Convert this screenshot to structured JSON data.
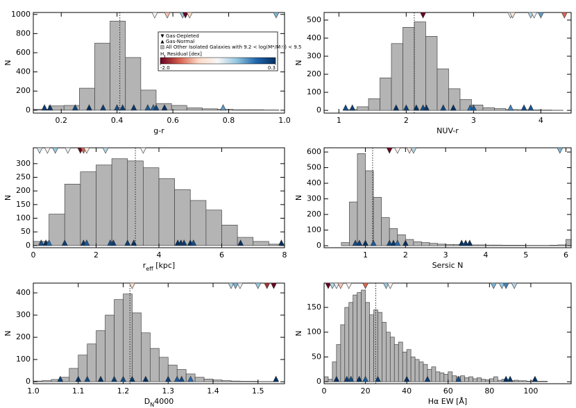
{
  "legend": {
    "loc": "upper right",
    "panel": 0,
    "entries": [
      "Gas-Depleted",
      "Gas-Normal",
      "All Other Isolated Galaxies with 9.2 < log(M*/M☉) < 9.5"
    ],
    "colorbar_label": [
      "H",
      "I",
      " Residual [dex]"
    ],
    "colorbar_lim": [
      -2.0,
      0.3
    ],
    "colorbar_ticks": [
      {
        "value": -2.0,
        "label": "-2.0"
      },
      0.3
    ],
    "cmap": [
      "#67001f",
      "#d6604d",
      "#fddbc7",
      "#f7f7f7",
      "#92c5de",
      "#2166ac",
      "#053061"
    ]
  },
  "chart_data": [
    {
      "type": "histogram",
      "xlabel": [
        "g-r"
      ],
      "ylabel": "N",
      "color": "#b4b4b4",
      "xlim": [
        0.1,
        1.0
      ],
      "ylim": [
        -30,
        1020
      ],
      "xticks": [
        0.2,
        0.4,
        0.6,
        0.8,
        {
          "value": 1.0,
          "label": "1.0"
        }
      ],
      "yticks": [
        0,
        200,
        400,
        600,
        800,
        1000
      ],
      "bins": [
        0.1,
        0.155,
        0.21,
        0.265,
        0.32,
        0.375,
        0.43,
        0.485,
        0.54,
        0.595,
        0.65,
        0.705,
        0.76,
        0.815,
        0.87,
        0.925,
        0.98
      ],
      "counts": [
        10,
        45,
        50,
        230,
        700,
        930,
        550,
        210,
        70,
        50,
        25,
        15,
        10,
        5,
        5,
        3
      ],
      "median": 0.41,
      "gas_depleted": {
        "x": [
          0.535,
          0.58,
          0.635,
          0.645,
          0.66,
          0.97
        ],
        "residual": [
          -0.9,
          -1.3,
          -0.5,
          -2.0,
          -1.2,
          -0.4
        ]
      },
      "gas_normal": {
        "x": [
          0.14,
          0.16,
          0.25,
          0.3,
          0.35,
          0.4,
          0.42,
          0.46,
          0.51,
          0.53,
          0.54,
          0.57,
          0.78
        ],
        "residual": [
          0.2,
          0.25,
          0.15,
          0.3,
          0.2,
          0.1,
          0.2,
          0.25,
          0.0,
          -0.1,
          0.15,
          0.3,
          -0.3
        ]
      }
    },
    {
      "type": "histogram",
      "xlabel": [
        "NUV-r"
      ],
      "ylabel": "N",
      "color": "#b4b4b4",
      "xlim": [
        0.78,
        4.45
      ],
      "ylim": [
        -15,
        542
      ],
      "xticks": [
        1,
        2,
        3,
        4
      ],
      "yticks": [
        0,
        100,
        200,
        300,
        400,
        500
      ],
      "bins": [
        1.1,
        1.27,
        1.44,
        1.61,
        1.78,
        1.95,
        2.12,
        2.29,
        2.46,
        2.63,
        2.8,
        2.97,
        3.14,
        3.31,
        3.48,
        3.65,
        3.82,
        3.99,
        4.16,
        4.33
      ],
      "counts": [
        5,
        20,
        65,
        180,
        370,
        460,
        490,
        410,
        230,
        120,
        60,
        30,
        15,
        10,
        5,
        4,
        3,
        2,
        1
      ],
      "median": 2.12,
      "gas_depleted": {
        "x": [
          2.25,
          3.55,
          3.58,
          3.85,
          3.9,
          4.0,
          4.35
        ],
        "residual": [
          -2.0,
          -0.9,
          -1.1,
          -0.6,
          -0.8,
          -0.3,
          -1.6
        ]
      },
      "gas_normal": {
        "x": [
          1.1,
          1.2,
          1.85,
          2.0,
          2.15,
          2.25,
          2.3,
          2.55,
          2.7,
          2.95,
          3.0,
          3.55,
          3.75,
          3.85
        ],
        "residual": [
          0.1,
          0.2,
          0.3,
          0.2,
          0.3,
          0.1,
          0.25,
          0.15,
          0.3,
          -0.1,
          0.0,
          -0.2,
          0.1,
          0.05
        ]
      }
    },
    {
      "type": "histogram",
      "xlabel": [
        "r",
        "eff",
        " [kpc]"
      ],
      "ylabel": "N",
      "color": "#b4b4b4",
      "xlim": [
        0,
        8
      ],
      "ylim": [
        -8,
        358
      ],
      "xticks": [
        0,
        2,
        4,
        6,
        8
      ],
      "yticks": [
        0,
        50,
        100,
        150,
        200,
        250,
        300
      ],
      "bins": [
        0,
        0.5,
        1,
        1.5,
        2,
        2.5,
        3,
        3.5,
        4,
        4.5,
        5,
        5.5,
        6,
        6.5,
        7,
        7.5,
        8
      ],
      "counts": [
        15,
        115,
        225,
        270,
        295,
        318,
        310,
        285,
        245,
        205,
        165,
        130,
        75,
        30,
        15,
        5
      ],
      "median": 3.25,
      "gas_depleted": {
        "x": [
          0.2,
          0.45,
          0.7,
          1.1,
          1.5,
          1.6,
          1.7,
          2.3,
          3.5
        ],
        "residual": [
          -0.7,
          -0.9,
          -0.5,
          -0.8,
          -2.0,
          -1.6,
          -1.0,
          -0.6,
          -0.9
        ]
      },
      "gas_normal": {
        "x": [
          0.25,
          0.4,
          0.5,
          1.0,
          1.6,
          1.7,
          2.45,
          2.55,
          3.0,
          3.2,
          4.6,
          4.7,
          4.8,
          5.0,
          5.1,
          6.6,
          7.9
        ],
        "residual": [
          0.1,
          0.3,
          -0.1,
          0.2,
          0.25,
          0.0,
          0.1,
          0.2,
          0.2,
          0.3,
          0.3,
          0.25,
          0.2,
          0.3,
          0.1,
          0.3,
          0.3
        ]
      }
    },
    {
      "type": "histogram",
      "xlabel": [
        "Sersic N"
      ],
      "ylabel": "N",
      "color": "#b4b4b4",
      "xlim": [
        -0.03,
        6.13
      ],
      "ylim": [
        -13,
        627
      ],
      "xticks": [
        1,
        2,
        3,
        4,
        5,
        6
      ],
      "yticks": [
        0,
        100,
        200,
        300,
        400,
        500,
        600
      ],
      "bins": [
        0.4,
        0.6,
        0.8,
        1.0,
        1.2,
        1.4,
        1.6,
        1.8,
        2.0,
        2.2,
        2.4,
        2.6,
        2.8,
        3.0,
        3.2,
        3.4,
        3.6,
        3.8,
        4.0,
        4.2,
        4.4,
        4.6,
        4.8,
        5.0,
        5.2,
        5.4,
        5.6,
        5.8,
        6.0,
        6.13
      ],
      "counts": [
        20,
        280,
        590,
        480,
        310,
        180,
        110,
        70,
        40,
        25,
        20,
        15,
        10,
        8,
        8,
        6,
        5,
        5,
        4,
        4,
        3,
        3,
        3,
        2,
        2,
        2,
        3,
        5,
        40
      ],
      "median": 1.18,
      "gas_depleted": {
        "x": [
          1.6,
          1.8,
          2.1,
          2.2,
          5.85
        ],
        "residual": [
          -2.0,
          -0.9,
          -1.1,
          -0.6,
          -0.4
        ]
      },
      "gas_normal": {
        "x": [
          0.75,
          0.85,
          1.0,
          1.2,
          1.6,
          1.7,
          1.8,
          2.0,
          3.4,
          3.5,
          3.6
        ],
        "residual": [
          0.1,
          0.2,
          0.3,
          0.0,
          0.15,
          0.25,
          -0.1,
          0.3,
          0.3,
          0.25,
          0.3
        ]
      }
    },
    {
      "type": "histogram",
      "xlabel": [
        "D",
        "N",
        "4000"
      ],
      "ylabel": "N",
      "color": "#b4b4b4",
      "xlim": [
        1.0,
        1.559
      ],
      "ylim": [
        -9,
        444
      ],
      "xticks": [
        {
          "value": 1.0,
          "label": "1.0"
        },
        1.1,
        1.2,
        1.3,
        1.4,
        1.5
      ],
      "yticks": [
        0,
        100,
        200,
        300,
        400
      ],
      "bins": [
        1.0,
        1.02,
        1.04,
        1.06,
        1.08,
        1.1,
        1.12,
        1.14,
        1.16,
        1.18,
        1.2,
        1.22,
        1.24,
        1.26,
        1.28,
        1.3,
        1.32,
        1.34,
        1.36,
        1.38,
        1.4,
        1.42,
        1.44,
        1.46,
        1.48,
        1.5,
        1.52,
        1.54
      ],
      "counts": [
        3,
        5,
        10,
        20,
        60,
        120,
        170,
        230,
        300,
        370,
        395,
        310,
        220,
        150,
        110,
        75,
        55,
        35,
        20,
        12,
        8,
        5,
        3,
        2,
        2,
        1,
        1
      ],
      "median": 1.215,
      "gas_depleted": {
        "x": [
          1.22,
          1.44,
          1.45,
          1.46,
          1.5,
          1.52,
          1.535
        ],
        "residual": [
          -1.2,
          -0.6,
          -0.4,
          -0.8,
          -0.5,
          -1.8,
          -2.0
        ]
      },
      "gas_normal": {
        "x": [
          1.06,
          1.1,
          1.12,
          1.15,
          1.18,
          1.2,
          1.22,
          1.25,
          1.3,
          1.32,
          1.33,
          1.35,
          1.54
        ],
        "residual": [
          0.2,
          0.3,
          0.1,
          0.3,
          0.2,
          0.1,
          0.25,
          0.3,
          0.2,
          0.0,
          0.1,
          -0.1,
          0.3
        ]
      }
    },
    {
      "type": "histogram",
      "xlabel": [
        "Hα EW [Å]"
      ],
      "ylabel": "N",
      "color": "#b4b4b4",
      "xlim": [
        0,
        119.5
      ],
      "ylim": [
        -4,
        199
      ],
      "xticks": [
        0,
        20,
        40,
        60,
        80,
        100
      ],
      "yticks": [
        0,
        50,
        100,
        150
      ],
      "bins": [
        0,
        2,
        4,
        6,
        8,
        10,
        12,
        14,
        16,
        18,
        20,
        22,
        24,
        26,
        28,
        30,
        32,
        34,
        36,
        38,
        40,
        42,
        44,
        46,
        48,
        50,
        52,
        54,
        56,
        58,
        60,
        62,
        64,
        66,
        68,
        70,
        72,
        74,
        76,
        78,
        80,
        82,
        84,
        86,
        88,
        90,
        92,
        94,
        96,
        98,
        100,
        102,
        104,
        106,
        108
      ],
      "counts": [
        10,
        5,
        40,
        75,
        115,
        150,
        160,
        175,
        180,
        185,
        160,
        135,
        145,
        140,
        120,
        100,
        90,
        75,
        80,
        60,
        65,
        50,
        45,
        40,
        35,
        25,
        30,
        20,
        18,
        15,
        20,
        12,
        10,
        12,
        8,
        10,
        6,
        8,
        5,
        4,
        6,
        10,
        3,
        5,
        4,
        2,
        3,
        2,
        2,
        1,
        2,
        1,
        1,
        1
      ],
      "median": 25,
      "gas_depleted": {
        "x": [
          2,
          4,
          6,
          8,
          12,
          20,
          30,
          32,
          82,
          86,
          88,
          92
        ],
        "residual": [
          -2.0,
          -0.6,
          -0.8,
          -1.3,
          -0.9,
          -1.6,
          -0.5,
          -0.9,
          -0.4,
          -0.5,
          -0.2,
          -0.6
        ]
      },
      "gas_normal": {
        "x": [
          6,
          11,
          13,
          17,
          20,
          26,
          40,
          50,
          65,
          88,
          90,
          102
        ],
        "residual": [
          0.3,
          0.2,
          0.1,
          0.3,
          0.0,
          0.2,
          0.3,
          0.2,
          0.1,
          0.3,
          0.25,
          0.3
        ]
      }
    }
  ]
}
